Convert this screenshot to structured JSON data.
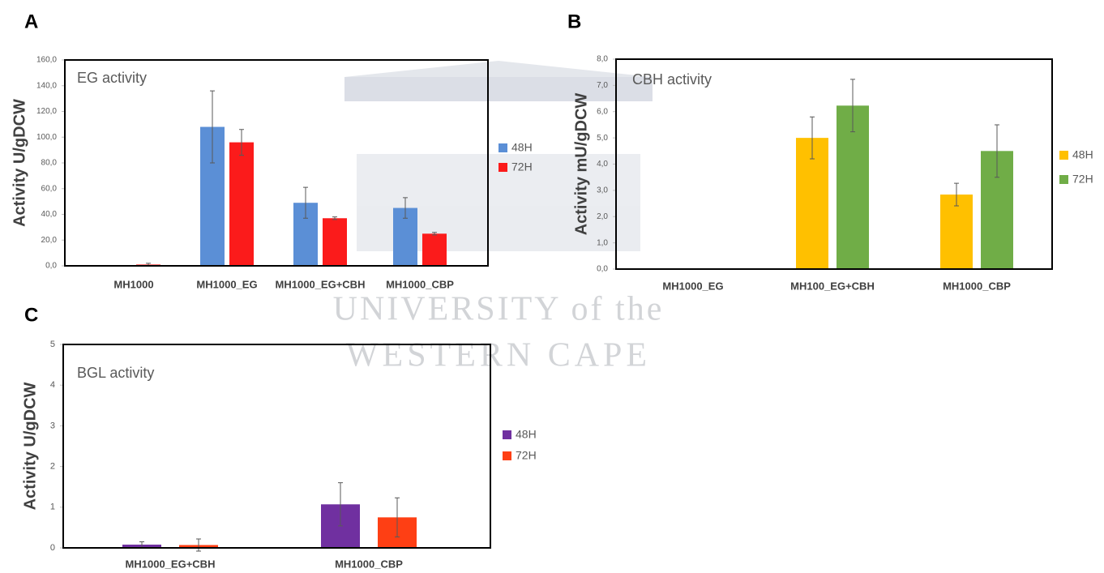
{
  "watermark": [
    "UNIVERSITY of the",
    "WESTERN CAPE"
  ],
  "chart_data": [
    {
      "type": "bar",
      "panel": "A",
      "title": "EG activity",
      "ylabel": "Activity U/gDCW",
      "categories": [
        "MH1000",
        "MH1000_EG",
        "MH1000_EG+CBH",
        "MH1000_CBP"
      ],
      "series": [
        {
          "name": "48H",
          "color": "#5b8fd6",
          "values": [
            0,
            108,
            49,
            45
          ],
          "errors": [
            0,
            28,
            12,
            8
          ]
        },
        {
          "name": "72H",
          "color": "#fb1b1b",
          "values": [
            1,
            96,
            37,
            25
          ],
          "errors": [
            1,
            10,
            1,
            1
          ]
        }
      ],
      "ylim": [
        0,
        160
      ],
      "yticks": [
        {
          "value": 0,
          "label": "0,0"
        },
        {
          "value": 20,
          "label": "20,0"
        },
        {
          "value": 40,
          "label": "40,0"
        },
        {
          "value": 60,
          "label": "60,0"
        },
        {
          "value": 80,
          "label": "80,0"
        },
        {
          "value": 100,
          "label": "100,0"
        },
        {
          "value": 120,
          "label": "120,0"
        },
        {
          "value": 140,
          "label": "140,0"
        },
        {
          "value": 160,
          "label": "160,0"
        }
      ],
      "grid": false,
      "legend": "right"
    },
    {
      "type": "bar",
      "panel": "B",
      "title": "CBH activity",
      "ylabel": "Activity mU/gDCW",
      "categories": [
        "MH1000_EG",
        "MH100_EG+CBH",
        "MH1000_CBP"
      ],
      "series": [
        {
          "name": "48H",
          "color": "#ffc000",
          "values": [
            0,
            5.0,
            2.84
          ],
          "errors": [
            0,
            0.8,
            0.43
          ]
        },
        {
          "name": "72H",
          "color": "#70ad47",
          "values": [
            0,
            6.23,
            4.5
          ],
          "errors": [
            0,
            1.0,
            1.0
          ]
        }
      ],
      "ylim": [
        0,
        8
      ],
      "yticks": [
        {
          "value": 0,
          "label": "0,0"
        },
        {
          "value": 1,
          "label": "1,0"
        },
        {
          "value": 2,
          "label": "2,0"
        },
        {
          "value": 3,
          "label": "3,0"
        },
        {
          "value": 4,
          "label": "4,0"
        },
        {
          "value": 5,
          "label": "5,0"
        },
        {
          "value": 6,
          "label": "6,0"
        },
        {
          "value": 7,
          "label": "7,0"
        },
        {
          "value": 8,
          "label": "8,0"
        }
      ],
      "grid": false,
      "legend": "right"
    },
    {
      "type": "bar",
      "panel": "C",
      "title": "BGL activity",
      "ylabel": "Activity U/gDCW",
      "categories": [
        "MH1000_EG+CBH",
        "MH1000_CBP"
      ],
      "series": [
        {
          "name": "48H",
          "color": "#7030a0",
          "values": [
            0.08,
            1.07
          ],
          "errors": [
            0.07,
            0.53
          ]
        },
        {
          "name": "72H",
          "color": "#fe3f14",
          "values": [
            0.07,
            0.75
          ],
          "errors": [
            0.15,
            0.48
          ]
        }
      ],
      "ylim": [
        0,
        5
      ],
      "yticks": [
        0,
        1,
        2,
        3,
        4,
        5
      ],
      "grid": false,
      "legend": "right"
    }
  ]
}
